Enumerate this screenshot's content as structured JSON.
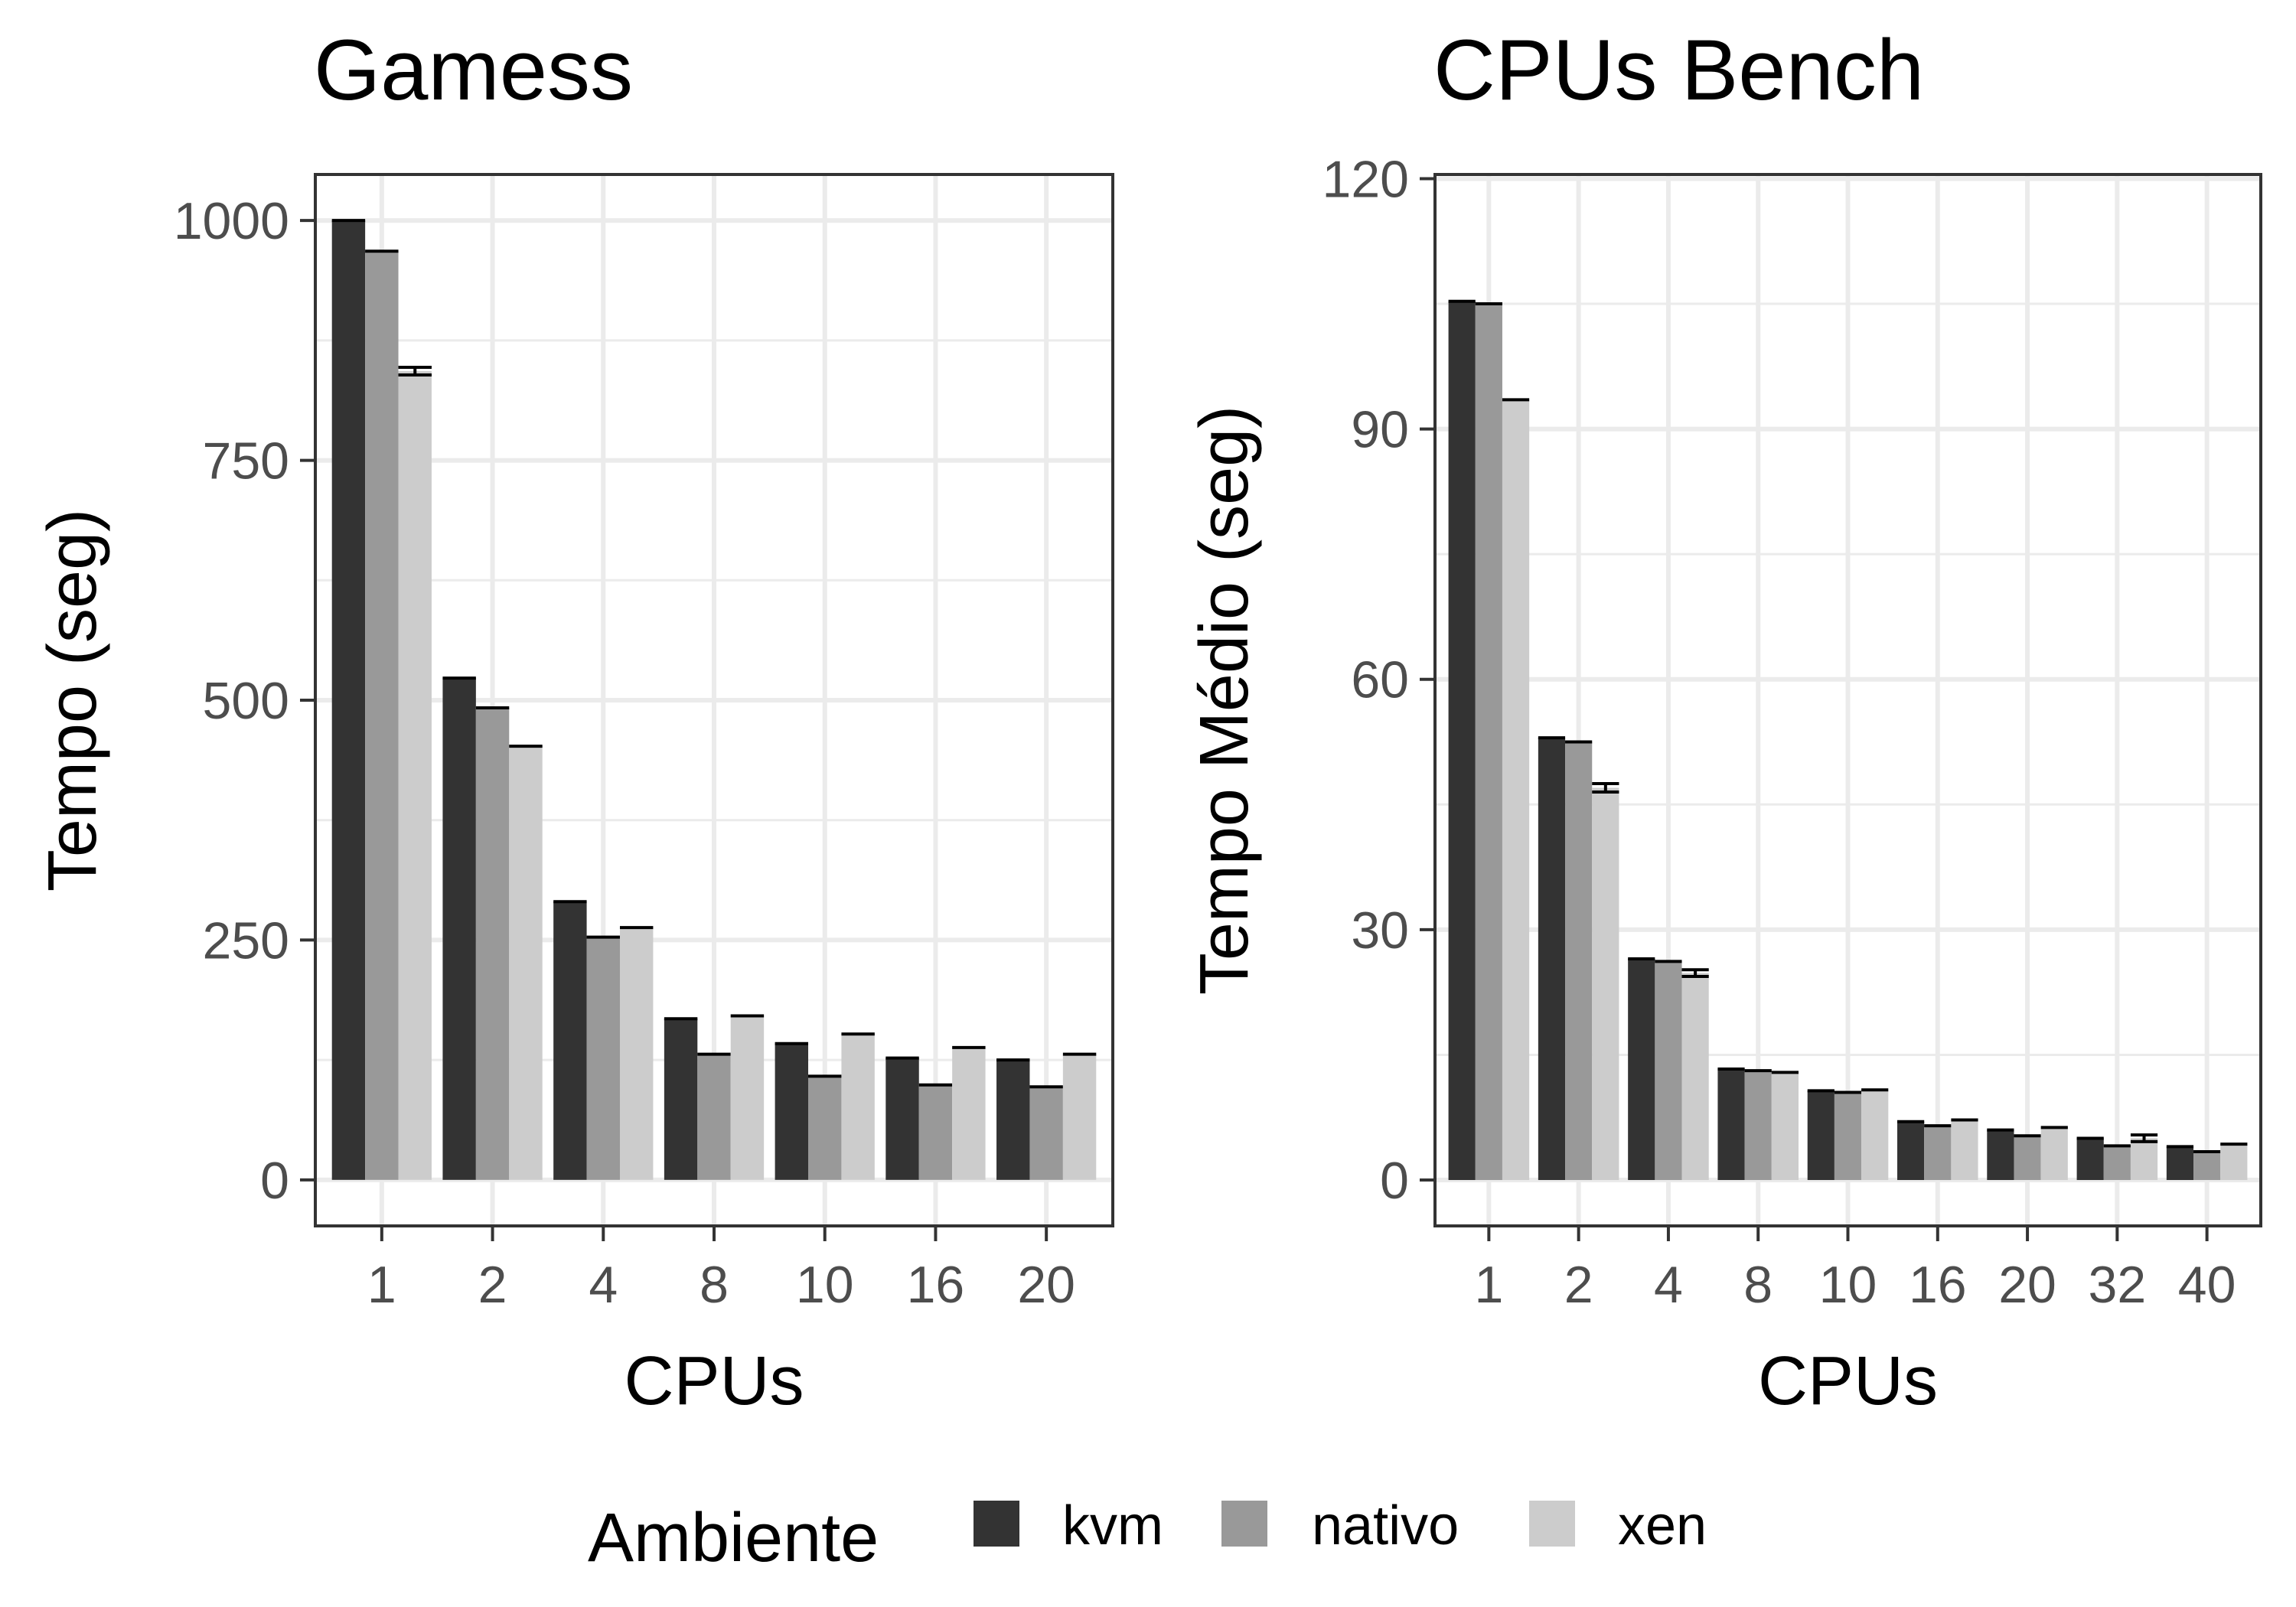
{
  "legend": {
    "title": "Ambiente",
    "position": "bottom",
    "items": [
      {
        "label": "kvm",
        "color": "#333333"
      },
      {
        "label": "nativo",
        "color": "#999999"
      },
      {
        "label": "xen",
        "color": "#cccccc"
      }
    ]
  },
  "chart_data": [
    {
      "type": "bar",
      "title": "Gamess",
      "xlabel": "CPUs",
      "ylabel": "Tempo (seg)",
      "categories": [
        "1",
        "2",
        "4",
        "8",
        "10",
        "16",
        "20"
      ],
      "ylim": [
        -48,
        1048
      ],
      "yticks": [
        0,
        250,
        500,
        750,
        1000
      ],
      "grid": true,
      "series": [
        {
          "name": "kvm",
          "color": "#333333",
          "values": [
            1000,
            523,
            290,
            168,
            142,
            127,
            125
          ],
          "error": [
            0,
            0,
            0,
            0,
            0,
            0,
            0
          ]
        },
        {
          "name": "nativo",
          "color": "#999999",
          "values": [
            968,
            492,
            253,
            131,
            108,
            99,
            97
          ],
          "error": [
            0,
            0,
            0,
            0,
            0,
            0,
            0
          ]
        },
        {
          "name": "xen",
          "color": "#cccccc",
          "values": [
            843,
            452,
            263,
            171,
            152,
            138,
            131
          ],
          "error": [
            4,
            0,
            0,
            0,
            0,
            0,
            0
          ]
        }
      ]
    },
    {
      "type": "bar",
      "title": "CPUs Bench",
      "xlabel": "CPUs",
      "ylabel": "Tempo Médio (seg)",
      "categories": [
        "1",
        "2",
        "4",
        "8",
        "10",
        "16",
        "20",
        "32",
        "40"
      ],
      "ylim": [
        -5.5,
        120.5
      ],
      "yticks": [
        0,
        30,
        60,
        90,
        120
      ],
      "grid": true,
      "series": [
        {
          "name": "kvm",
          "color": "#333333",
          "values": [
            105.3,
            53.0,
            26.5,
            13.3,
            10.7,
            7.0,
            6.0,
            5.0,
            4.0
          ],
          "error": [
            0,
            0,
            0,
            0,
            0,
            0,
            0,
            0,
            0
          ]
        },
        {
          "name": "nativo",
          "color": "#999999",
          "values": [
            105.0,
            52.5,
            26.2,
            13.1,
            10.5,
            6.5,
            5.3,
            4.1,
            3.4
          ],
          "error": [
            0,
            0,
            0,
            0,
            0,
            0,
            0,
            0,
            0
          ]
        },
        {
          "name": "xen",
          "color": "#cccccc",
          "values": [
            93.5,
            47.0,
            24.8,
            12.9,
            10.8,
            7.2,
            6.3,
            5.0,
            4.3
          ],
          "error": [
            0,
            0.5,
            0.4,
            0,
            0,
            0,
            0,
            0.4,
            0
          ]
        }
      ]
    }
  ]
}
